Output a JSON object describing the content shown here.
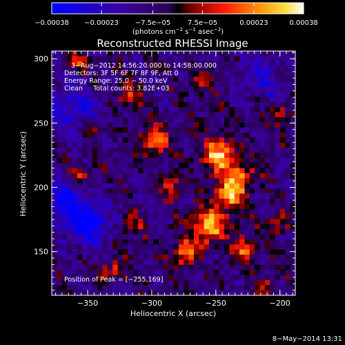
{
  "chart_data": {
    "type": "heatmap",
    "title": "Reconstructed RHESSI Image",
    "xlabel": "Heliocentric X (arcsec)",
    "ylabel": "Heliocentric Y (arcsec)",
    "xlim": [
      -378,
      -188
    ],
    "ylim": [
      116,
      306
    ],
    "x_ticks": [
      "−350",
      "−300",
      "−250",
      "−200"
    ],
    "x_tick_values": [
      -350,
      -300,
      -250,
      -200
    ],
    "y_ticks": [
      "150",
      "200",
      "250",
      "300"
    ],
    "y_tick_values": [
      150,
      200,
      250,
      300
    ],
    "colorbar": {
      "min": -0.00038,
      "max": 0.00038,
      "tick_labels": [
        "−0.00038",
        "−0.00023",
        "−7.5e−05",
        "7.5e−05",
        "0.00023",
        "0.00038"
      ],
      "tick_values": [
        -0.00038,
        -0.00023,
        -7.5e-05,
        7.5e-05,
        0.00023,
        0.00038
      ],
      "units": [
        "(photons cm",
        "−2",
        " s",
        "−1",
        " asec",
        "−2",
        ")"
      ]
    },
    "annotations": [
      "3−Aug−2012 14:56:20.000 to 14:58:00.000",
      "Detectors: 3F 5F 6F 7F 8F 9F, Att 0",
      "Energy Range: 25.0 − 50.0 keV",
      "Clean     Total counts: 3.82E+03"
    ],
    "peak_label": "Position of Peak = [−255,169]",
    "peak": [
      -255,
      169
    ],
    "emission_sources": [
      {
        "x": -298,
        "y": 237,
        "amplitude": 0.00032,
        "sigma": 7
      },
      {
        "x": -248,
        "y": 225,
        "amplitude": 0.00036,
        "sigma": 9
      },
      {
        "x": -232,
        "y": 208,
        "amplitude": 0.00028,
        "sigma": 8
      },
      {
        "x": -240,
        "y": 193,
        "amplitude": 0.00034,
        "sigma": 8
      },
      {
        "x": -255,
        "y": 169,
        "amplitude": 0.00038,
        "sigma": 9
      },
      {
        "x": -274,
        "y": 149,
        "amplitude": 0.0003,
        "sigma": 7
      },
      {
        "x": -228,
        "y": 152,
        "amplitude": 0.00026,
        "sigma": 7
      },
      {
        "x": -285,
        "y": 200,
        "amplitude": 0.0002,
        "sigma": 6
      },
      {
        "x": -318,
        "y": 271,
        "amplitude": 0.00022,
        "sigma": 6
      },
      {
        "x": -345,
        "y": 246,
        "amplitude": 0.00016,
        "sigma": 5
      },
      {
        "x": -355,
        "y": 210,
        "amplitude": 0.00018,
        "sigma": 5
      },
      {
        "x": -358,
        "y": 296,
        "amplitude": 0.0002,
        "sigma": 5
      },
      {
        "x": -198,
        "y": 258,
        "amplitude": 0.00017,
        "sigma": 5
      },
      {
        "x": -203,
        "y": 172,
        "amplitude": 0.00018,
        "sigma": 6
      },
      {
        "x": -315,
        "y": 170,
        "amplitude": 0.00018,
        "sigma": 6
      },
      {
        "x": -330,
        "y": 135,
        "amplitude": 0.0002,
        "sigma": 6
      },
      {
        "x": -210,
        "y": 124,
        "amplitude": 0.00016,
        "sigma": 5
      },
      {
        "x": -262,
        "y": 282,
        "amplitude": 0.00014,
        "sigma": 6
      }
    ],
    "negative_regions": [
      {
        "x": -362,
        "y": 262,
        "amplitude": -0.0002,
        "sigma": 14
      },
      {
        "x": -350,
        "y": 172,
        "amplitude": -0.0003,
        "sigma": 12
      },
      {
        "x": -368,
        "y": 190,
        "amplitude": -0.00025,
        "sigma": 10
      },
      {
        "x": -212,
        "y": 286,
        "amplitude": -0.00016,
        "sigma": 12
      }
    ]
  },
  "footer_date": "8−May−2014 13:31"
}
